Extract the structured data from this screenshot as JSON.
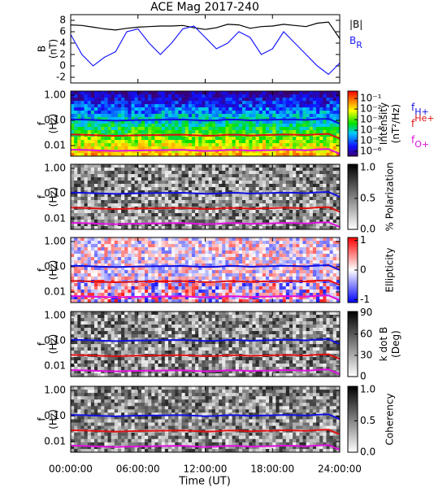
{
  "title": "ACE Mag 2017-240",
  "x_axis": {
    "label": "Time (UT)",
    "xlim": [
      0,
      24
    ],
    "xticks": [
      {
        "value": 0,
        "label": "00:00:00"
      },
      {
        "value": 6,
        "label": "06:00:00"
      },
      {
        "value": 12,
        "label": "12:00:00"
      },
      {
        "value": 18,
        "label": "18:00:00"
      },
      {
        "value": 24,
        "label": "24:00:00"
      }
    ]
  },
  "gyrofrequency_lines": {
    "x": [
      0,
      1,
      2,
      3,
      4,
      5,
      6,
      7,
      8,
      9,
      10,
      11,
      12,
      13,
      14,
      15,
      16,
      17,
      18,
      19,
      20,
      21,
      22,
      23,
      24
    ],
    "series": [
      {
        "name": {
          "base": "f",
          "sub": "H+"
        },
        "color": "#1010e0",
        "values": [
          0.11,
          0.108,
          0.104,
          0.1,
          0.097,
          0.1,
          0.103,
          0.104,
          0.105,
          0.107,
          0.108,
          0.103,
          0.098,
          0.1,
          0.108,
          0.107,
          0.1,
          0.104,
          0.106,
          0.11,
          0.108,
          0.104,
          0.112,
          0.116,
          0.075
        ]
      },
      {
        "name": {
          "base": "f",
          "sup": "He+"
        },
        "color": "#e01010",
        "values": [
          0.0275,
          0.027,
          0.026,
          0.025,
          0.0243,
          0.025,
          0.0258,
          0.026,
          0.0263,
          0.0268,
          0.027,
          0.0258,
          0.0245,
          0.025,
          0.027,
          0.0268,
          0.025,
          0.026,
          0.0265,
          0.0275,
          0.027,
          0.026,
          0.028,
          0.029,
          0.019
        ]
      },
      {
        "name": {
          "base": "f",
          "sub": "O+"
        },
        "color": "#e010e0",
        "values": [
          0.0069,
          0.0068,
          0.0065,
          0.0063,
          0.0061,
          0.0063,
          0.0064,
          0.0065,
          0.0066,
          0.0067,
          0.0068,
          0.0064,
          0.0061,
          0.0063,
          0.0068,
          0.0067,
          0.0063,
          0.0065,
          0.0066,
          0.0069,
          0.0068,
          0.0065,
          0.007,
          0.0073,
          0.0047
        ]
      }
    ]
  },
  "chart_data": [
    {
      "type": "line",
      "ylabel": [
        "B",
        "(nT)"
      ],
      "ylim": [
        -3,
        9
      ],
      "yticks": [
        -2,
        0,
        2,
        4,
        6,
        8
      ],
      "x": [
        0,
        1,
        2,
        3,
        4,
        5,
        6,
        7,
        8,
        9,
        10,
        11,
        12,
        13,
        14,
        15,
        16,
        17,
        18,
        19,
        20,
        21,
        22,
        23,
        24
      ],
      "series": [
        {
          "name": {
            "base": "|B|"
          },
          "color": "#000000",
          "values": [
            7.2,
            7.1,
            6.8,
            6.5,
            6.3,
            6.6,
            6.8,
            6.9,
            7.0,
            7.0,
            7.1,
            6.7,
            6.4,
            6.7,
            7.3,
            7.2,
            6.6,
            6.9,
            7.0,
            7.3,
            7.1,
            6.9,
            7.5,
            7.7,
            4.8
          ]
        },
        {
          "name": {
            "base": "B",
            "sub": "R"
          },
          "color": "#1a1aff",
          "values": [
            5.5,
            2,
            0,
            1.5,
            2.5,
            6,
            6.5,
            4,
            2,
            4,
            6.5,
            7,
            5,
            3,
            4,
            6,
            5,
            2,
            3,
            6,
            4,
            2,
            0,
            -1.5,
            0.5
          ]
        }
      ]
    },
    {
      "type": "spectrogram",
      "colormap": "rainbow",
      "ylabel": [
        "f",
        "(Hz)"
      ],
      "log": true,
      "ylim": [
        0.0038,
        1.45
      ],
      "yticks": [
        {
          "value": 1,
          "label": "1.00"
        },
        {
          "value": 0.1,
          "label": "0.10"
        },
        {
          "value": 0.01,
          "label": "0.01"
        }
      ],
      "colorbar": {
        "label": [
          "Intensity",
          "(nT²/Hz)"
        ],
        "log": true,
        "lim": [
          3.5e-07,
          0.5
        ],
        "ticks": [
          {
            "value": 0.1,
            "label": "10⁻¹"
          },
          {
            "value": 0.01,
            "label": "10⁻²"
          },
          {
            "value": 0.001,
            "label": "10⁻³"
          },
          {
            "value": 0.0001,
            "label": "10⁻⁴"
          },
          {
            "value": 1e-05,
            "label": "10⁻⁵"
          },
          {
            "value": 1e-06,
            "label": "10⁻⁶"
          }
        ]
      },
      "legend": true
    },
    {
      "type": "spectrogram",
      "colormap": "gray",
      "ylabel": [
        "f",
        "(Hz)"
      ],
      "log": true,
      "ylim": [
        0.0038,
        1.45
      ],
      "yticks": [
        {
          "value": 1,
          "label": "1.00"
        },
        {
          "value": 0.1,
          "label": "0.10"
        },
        {
          "value": 0.01,
          "label": "0.01"
        }
      ],
      "colorbar": {
        "label": [
          "% Polarization"
        ],
        "lim": [
          0,
          1.05
        ],
        "ticks": [
          {
            "value": 1,
            "label": "1.0"
          },
          {
            "value": 0.5,
            "label": "0.5"
          },
          {
            "value": 0,
            "label": "0.0"
          }
        ]
      }
    },
    {
      "type": "spectrogram",
      "colormap": "bwr",
      "ylabel": [
        "f",
        "(Hz)"
      ],
      "log": true,
      "ylim": [
        0.0038,
        1.45
      ],
      "yticks": [
        {
          "value": 1,
          "label": "1.00"
        },
        {
          "value": 0.1,
          "label": "0.10"
        },
        {
          "value": 0.01,
          "label": "0.01"
        }
      ],
      "colorbar": {
        "label": [
          "Ellipticity"
        ],
        "lim": [
          -1.1,
          1.1
        ],
        "ticks": [
          1,
          0,
          -1
        ]
      }
    },
    {
      "type": "spectrogram",
      "colormap": "gray",
      "ylabel": [
        "f",
        "(Hz)"
      ],
      "log": true,
      "ylim": [
        0.0038,
        1.45
      ],
      "yticks": [
        {
          "value": 1,
          "label": "1.00"
        },
        {
          "value": 0.1,
          "label": "0.10"
        },
        {
          "value": 0.01,
          "label": "0.01"
        }
      ],
      "colorbar": {
        "label": [
          "k dot B",
          "(Deg)"
        ],
        "lim": [
          0,
          92
        ],
        "ticks": [
          90,
          60,
          30,
          0
        ]
      }
    },
    {
      "type": "spectrogram",
      "colormap": "gray",
      "ylabel": [
        "f",
        "(Hz)"
      ],
      "log": true,
      "ylim": [
        0.0038,
        1.45
      ],
      "yticks": [
        {
          "value": 1,
          "label": "1.00"
        },
        {
          "value": 0.1,
          "label": "0.10"
        },
        {
          "value": 0.01,
          "label": "0.01"
        }
      ],
      "colorbar": {
        "label": [
          "Coherency"
        ],
        "lim": [
          0,
          1.05
        ],
        "ticks": [
          {
            "value": 1,
            "label": "1.0"
          },
          {
            "value": 0.5,
            "label": "0.5"
          },
          {
            "value": 0,
            "label": "0.0"
          }
        ]
      }
    }
  ]
}
